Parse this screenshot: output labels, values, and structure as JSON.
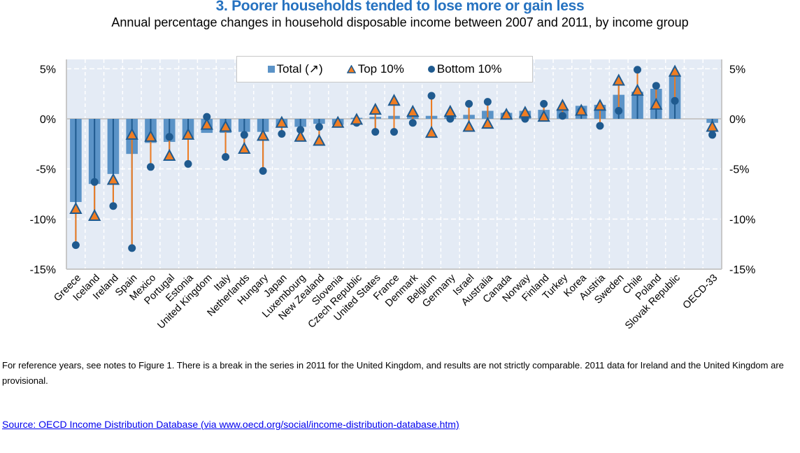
{
  "title": "3. Poorer households tended to lose more or gain less",
  "subtitle": "Annual percentage changes in household disposable income between 2007 and 2011, by income group",
  "legend": {
    "total": "Total (↗)",
    "top": "Top 10%",
    "bottom": "Bottom 10%"
  },
  "note": "For reference years, see notes to Figure 1. There is a break in the series in 2011 for the United Kingdom, and results are not strictly comparable.  2011 data for Ireland and the United Kingdom are provisional.",
  "source": "Source: OECD Income Distribution Database (via www.oecd.org/social/income-distribution-database.htm)",
  "colors": {
    "plot_bg": "#e4ebf5",
    "bar": "#5b93c7",
    "top_marker": "#f07d22",
    "marker_outline": "#1f5a8f",
    "bottom_marker": "#1f5a8f",
    "title": "#2672c0"
  },
  "chart_data": {
    "type": "bar",
    "title": "3. Poorer households tended to lose more or gain less",
    "subtitle": "Annual percentage changes in household disposable income between 2007 and 2011, by income group",
    "xlabel": "",
    "ylabel": "",
    "ylim": [
      -15,
      5
    ],
    "yticks": [
      5,
      0,
      -5,
      -10,
      -15
    ],
    "ytick_labels": [
      "5%",
      "0%",
      "-5%",
      "-10%",
      "-15%"
    ],
    "grid": true,
    "legend_position": "top-center",
    "categories": [
      "Greece",
      "Iceland",
      "Ireland",
      "Spain",
      "Mexico",
      "Portugal",
      "Estonia",
      "United Kingdom",
      "Italy",
      "Netherlands",
      "Hungary",
      "Japan",
      "Luxembourg",
      "New Zealand",
      "Slovenia",
      "Czech Republic",
      "United States",
      "France",
      "Denmark",
      "Belgium",
      "Germany",
      "Israel",
      "Australia",
      "Canada",
      "Norway",
      "Finland",
      "Turkey",
      "Korea",
      "Austria",
      "Sweden",
      "Chile",
      "Poland",
      "Slovak Republic",
      "",
      "OECD-33"
    ],
    "series": [
      {
        "name": "Total",
        "kind": "bar",
        "values": [
          -8.3,
          -6.5,
          -5.5,
          -3.5,
          -2.4,
          -2.3,
          -1.9,
          -1.4,
          -1.4,
          -1.3,
          -1.3,
          -0.8,
          -0.8,
          -0.5,
          -0.6,
          0.1,
          0.2,
          0.3,
          0.3,
          0.3,
          0.3,
          0.4,
          0.8,
          0.6,
          0.8,
          0.9,
          1.0,
          1.3,
          1.4,
          2.4,
          2.7,
          3.0,
          4.3,
          null,
          -0.4
        ]
      },
      {
        "name": "Top 10%",
        "kind": "triangle",
        "values": [
          -9.0,
          -9.7,
          -6.1,
          -1.6,
          -1.8,
          -3.7,
          -1.6,
          -0.6,
          -0.8,
          -3.0,
          -1.7,
          -0.4,
          -1.8,
          -2.2,
          -0.4,
          -0.1,
          0.9,
          1.8,
          0.7,
          -1.4,
          0.7,
          -0.8,
          -0.5,
          0.4,
          0.6,
          0.2,
          1.3,
          0.8,
          1.3,
          3.8,
          2.8,
          1.4,
          4.7,
          null,
          -0.8
        ]
      },
      {
        "name": "Bottom 10%",
        "kind": "dot",
        "values": [
          -12.6,
          -6.3,
          -8.7,
          -12.9,
          -4.8,
          -1.8,
          -4.5,
          0.2,
          -3.8,
          -1.6,
          -5.2,
          -1.5,
          -1.1,
          -0.8,
          -0.5,
          -0.4,
          -1.3,
          -1.3,
          -0.4,
          2.3,
          0.0,
          1.5,
          1.7,
          0.4,
          0.0,
          1.5,
          0.3,
          0.8,
          -0.7,
          0.8,
          4.9,
          3.3,
          1.8,
          null,
          -1.6
        ]
      }
    ]
  }
}
